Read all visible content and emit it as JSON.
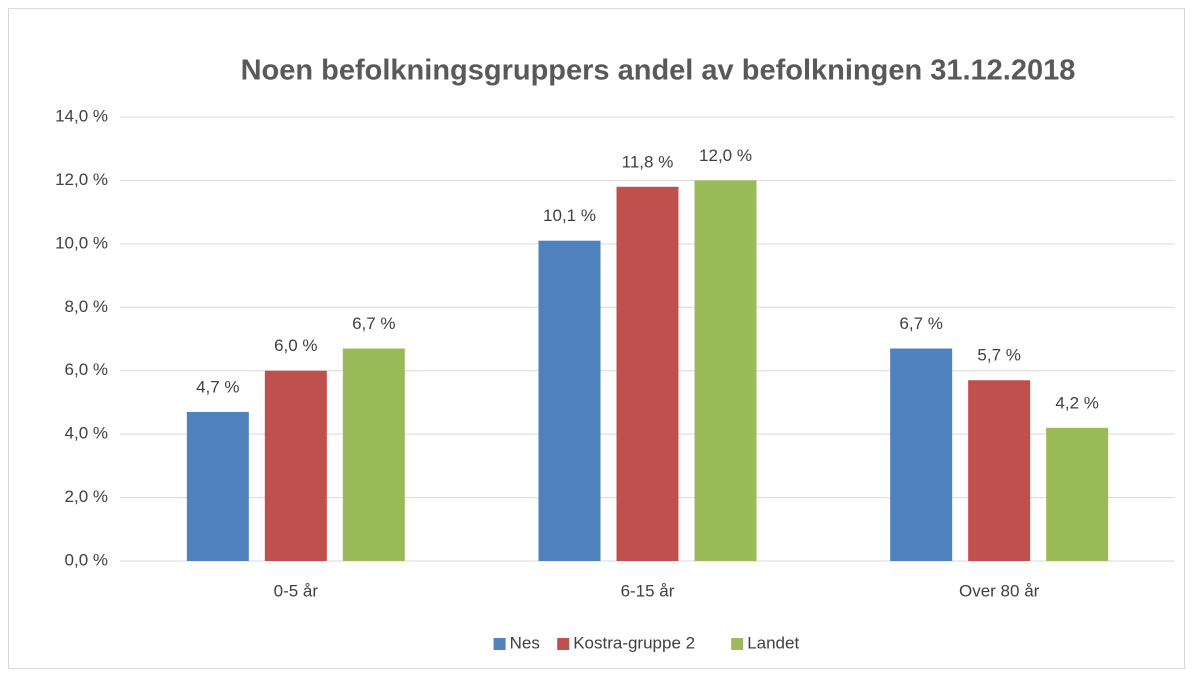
{
  "chart_data": {
    "type": "bar",
    "title": "Noen befolkningsgruppers andel av befolkningen 31.12.2018",
    "categories": [
      "0-5 år",
      "6-15 år",
      "Over 80 år"
    ],
    "series": [
      {
        "name": "Nes",
        "color": "#4f81bd",
        "values": [
          4.7,
          10.1,
          6.7
        ],
        "value_labels": [
          "4,7 %",
          "10,1 %",
          "6,7 %"
        ]
      },
      {
        "name": "Kostra-gruppe 2",
        "color": "#c0504d",
        "values": [
          6.0,
          11.8,
          5.7
        ],
        "value_labels": [
          "6,0 %",
          "11,8 %",
          "5,7 %"
        ]
      },
      {
        "name": "Landet",
        "color": "#9bbb59",
        "values": [
          6.7,
          12.0,
          4.2
        ],
        "value_labels": [
          "6,7 %",
          "12,0 %",
          "4,2 %"
        ]
      }
    ],
    "ylim": [
      0,
      14
    ],
    "yticks": [
      {
        "value": 0,
        "label": "0,0 %"
      },
      {
        "value": 2,
        "label": "2,0 %"
      },
      {
        "value": 4,
        "label": "4,0 %"
      },
      {
        "value": 6,
        "label": "6,0 %"
      },
      {
        "value": 8,
        "label": "8,0 %"
      },
      {
        "value": 10,
        "label": "10,0 %"
      },
      {
        "value": 12,
        "label": "12,0 %"
      },
      {
        "value": 14,
        "label": "14,0 %"
      }
    ],
    "grid": true,
    "legend": "bottom"
  }
}
